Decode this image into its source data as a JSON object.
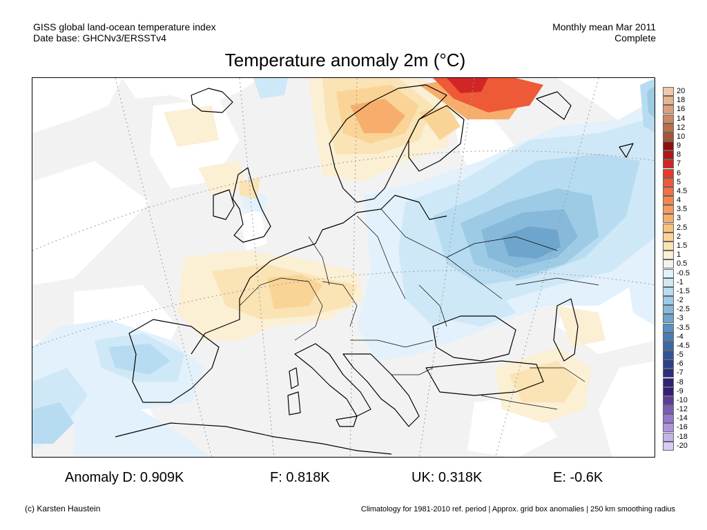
{
  "header": {
    "left_line1": "GISS global land-ocean temperature index",
    "left_line2": "Date base: GHCNv3/ERSSTv4",
    "right_line1": "Monthly mean Mar 2011",
    "right_line2": "Complete"
  },
  "title": "Temperature anomaly 2m (°C)",
  "stats": {
    "d": "Anomaly D: 0.909K",
    "f": "F: 0.818K",
    "uk": "UK: 0.318K",
    "e": "E: -0.6K"
  },
  "footer": {
    "credit": "(c) Karsten Haustein",
    "note": "Climatology for 1981-2010 ref. period | Approx. grid box anomalies | 250 km smoothing radius"
  },
  "colorbar": [
    {
      "label": "20",
      "color": "#f2c6a8"
    },
    {
      "label": "18",
      "color": "#e8b393"
    },
    {
      "label": "16",
      "color": "#dc9f7f"
    },
    {
      "label": "14",
      "color": "#cd8866"
    },
    {
      "label": "12",
      "color": "#bb6f4d"
    },
    {
      "label": "10",
      "color": "#a65537"
    },
    {
      "label": "9",
      "color": "#8e0f0f"
    },
    {
      "label": "8",
      "color": "#b51515"
    },
    {
      "label": "7",
      "color": "#d22525"
    },
    {
      "label": "6",
      "color": "#e53a2a"
    },
    {
      "label": "5",
      "color": "#ee5a37"
    },
    {
      "label": "4.5",
      "color": "#f36f44"
    },
    {
      "label": "4",
      "color": "#f58650"
    },
    {
      "label": "3.5",
      "color": "#f69b5d"
    },
    {
      "label": "3",
      "color": "#f7ae6d"
    },
    {
      "label": "2.5",
      "color": "#f8c27e"
    },
    {
      "label": "2",
      "color": "#f9d496"
    },
    {
      "label": "1.5",
      "color": "#fae3b4"
    },
    {
      "label": "1",
      "color": "#fbefd4"
    },
    {
      "label": "0.5",
      "color": "#f2f2f2"
    },
    {
      "label": "-0.5",
      "color": "#e2f1fb"
    },
    {
      "label": "-1",
      "color": "#cfe8f7"
    },
    {
      "label": "-1.5",
      "color": "#b7dcf1"
    },
    {
      "label": "-2",
      "color": "#9dcbe6"
    },
    {
      "label": "-2.5",
      "color": "#86b9da"
    },
    {
      "label": "-3",
      "color": "#6ea5cd"
    },
    {
      "label": "-3.5",
      "color": "#5a91c2"
    },
    {
      "label": "-4",
      "color": "#4a7db6"
    },
    {
      "label": "-4.5",
      "color": "#3d68a8"
    },
    {
      "label": "-5",
      "color": "#33549a"
    },
    {
      "label": "-6",
      "color": "#2d408c"
    },
    {
      "label": "-7",
      "color": "#2b2f80"
    },
    {
      "label": "-8",
      "color": "#2f2378"
    },
    {
      "label": "-9",
      "color": "#3a1d7a"
    },
    {
      "label": "-10",
      "color": "#5b3c9c"
    },
    {
      "label": "-12",
      "color": "#7a5bb8"
    },
    {
      "label": "-14",
      "color": "#9677cc"
    },
    {
      "label": "-16",
      "color": "#ae94dc"
    },
    {
      "label": "-18",
      "color": "#c4b2e8"
    },
    {
      "label": "-20",
      "color": "#d8ccf2"
    }
  ]
}
